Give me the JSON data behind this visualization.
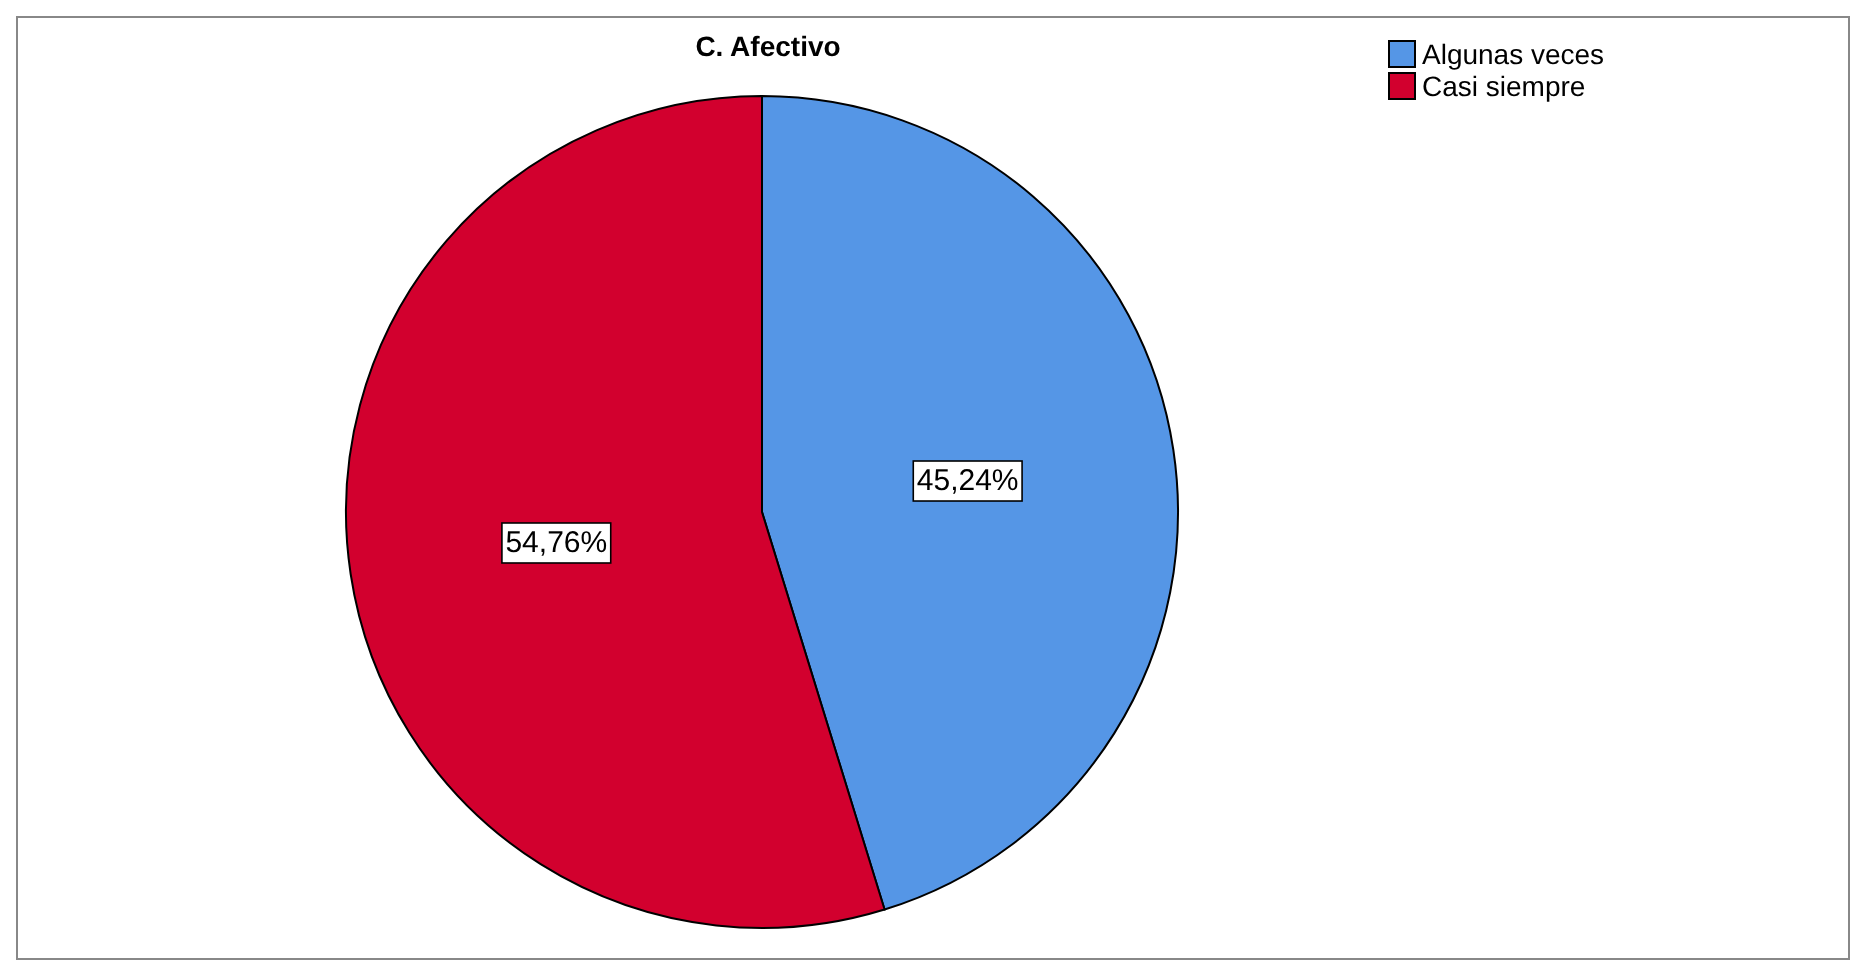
{
  "chart_data": {
    "type": "pie",
    "title": "C. Afectivo",
    "categories": [
      "Algunas veces",
      "Casi siempre"
    ],
    "values": [
      45.24,
      54.76
    ],
    "colors": [
      "#5596e6",
      "#d2002e"
    ],
    "value_labels": [
      "45,24%",
      "54,76%"
    ],
    "legend": "top right"
  }
}
